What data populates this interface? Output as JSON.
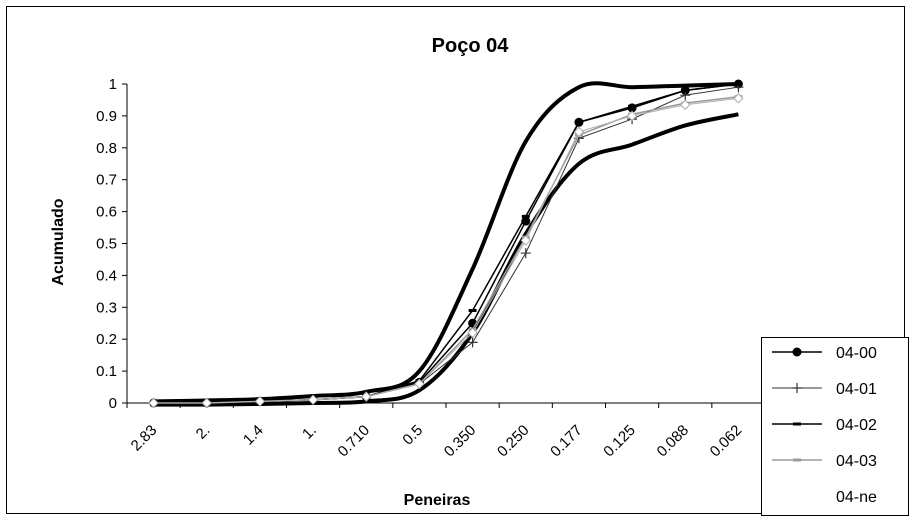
{
  "chart_data": {
    "type": "line",
    "title": "Poço 04",
    "xlabel": "Peneiras",
    "ylabel": "Acumulado",
    "ylim": [
      0,
      1
    ],
    "ytick_labels": [
      "0",
      "0.1",
      "0.2",
      "0.3",
      "0.4",
      "0.5",
      "0.6",
      "0.7",
      "0.8",
      "0.9",
      "1"
    ],
    "categories": [
      "2.83",
      "2.",
      "1.4",
      "1.",
      "0.710",
      "0.5",
      "0.350",
      "0.250",
      "0.177",
      "0.125",
      "0.088",
      "0.062"
    ],
    "grid": false,
    "legend_position": "bottom-right",
    "series": [
      {
        "name": "04-00",
        "marker": "circle",
        "values": [
          0.0,
          0.0,
          0.005,
          0.01,
          0.02,
          0.065,
          0.25,
          0.57,
          0.88,
          0.925,
          0.98,
          1.0
        ]
      },
      {
        "name": "04-01",
        "marker": "plus",
        "values": [
          0.0,
          0.0,
          0.005,
          0.01,
          0.02,
          0.06,
          0.19,
          0.47,
          0.83,
          0.89,
          0.965,
          0.99
        ]
      },
      {
        "name": "04-02",
        "marker": "dash",
        "values": [
          0.0,
          0.0,
          0.005,
          0.01,
          0.02,
          0.07,
          0.29,
          0.585,
          0.88,
          0.93,
          0.98,
          1.0
        ]
      },
      {
        "name": "04-03",
        "marker": "dash",
        "values": [
          0.0,
          0.0,
          0.005,
          0.01,
          0.02,
          0.06,
          0.23,
          0.52,
          0.84,
          0.905,
          0.94,
          0.96
        ]
      },
      {
        "name": "04-ne",
        "marker": "diamond",
        "values": [
          0.0,
          0.0,
          0.005,
          0.01,
          0.02,
          0.06,
          0.22,
          0.51,
          0.85,
          0.9,
          0.935,
          0.955
        ]
      }
    ],
    "envelope": {
      "upper": [
        0.005,
        0.008,
        0.012,
        0.022,
        0.035,
        0.1,
        0.42,
        0.82,
        0.99,
        0.99,
        0.995,
        1.0
      ],
      "lower": [
        -0.005,
        -0.005,
        -0.003,
        0.0,
        0.005,
        0.04,
        0.22,
        0.53,
        0.75,
        0.81,
        0.87,
        0.905
      ]
    },
    "colors": {
      "axis": "#000000",
      "series_dark": "#000000",
      "series_light": "#9a9a9a"
    }
  }
}
